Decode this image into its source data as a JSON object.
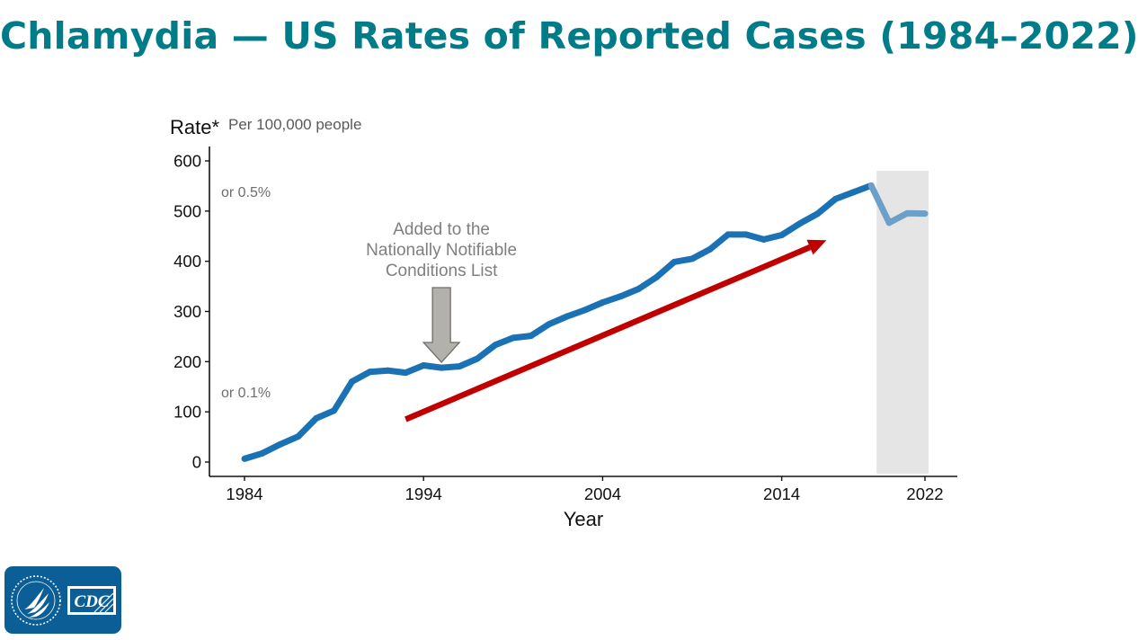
{
  "title": "Chlamydia — US Rates of Reported Cases (1984–2022)",
  "chart_data": {
    "type": "line",
    "xlabel": "Year",
    "ylabel": "Rate*",
    "ylabel_note": "Per 100,000 people",
    "xlim": [
      1984,
      2022
    ],
    "ylim": [
      0,
      600
    ],
    "x_ticks": [
      "1984",
      "1994",
      "2004",
      "2014",
      "2022"
    ],
    "y_ticks": [
      "0",
      "100",
      "200",
      "300",
      "400",
      "500",
      "600"
    ],
    "series": [
      {
        "color": "#1a72b5",
        "points": [
          [
            1984,
            6.5
          ],
          [
            1985,
            17.4
          ],
          [
            1986,
            35.2
          ],
          [
            1987,
            50.8
          ],
          [
            1988,
            87.1
          ],
          [
            1989,
            102.5
          ],
          [
            1990,
            160.2
          ],
          [
            1991,
            179.7
          ],
          [
            1992,
            182.3
          ],
          [
            1993,
            178.0
          ],
          [
            1994,
            192.5
          ],
          [
            1995,
            187.8
          ],
          [
            1996,
            190.6
          ],
          [
            1997,
            206.0
          ],
          [
            1998,
            233.2
          ],
          [
            1999,
            247.4
          ],
          [
            2000,
            251.4
          ],
          [
            2001,
            274.5
          ],
          [
            2002,
            290.0
          ],
          [
            2003,
            302.7
          ],
          [
            2004,
            317.9
          ],
          [
            2005,
            330.1
          ],
          [
            2006,
            344.7
          ],
          [
            2007,
            368.0
          ],
          [
            2008,
            398.6
          ],
          [
            2009,
            405.0
          ],
          [
            2010,
            423.9
          ],
          [
            2011,
            453.4
          ],
          [
            2012,
            453.3
          ],
          [
            2013,
            443.5
          ],
          [
            2014,
            452.2
          ],
          [
            2015,
            475.0
          ],
          [
            2016,
            494.7
          ],
          [
            2017,
            524.0
          ],
          [
            2018,
            537.5
          ],
          [
            2019,
            551.0
          ]
        ]
      },
      {
        "color": "#6da0c9",
        "points": [
          [
            2019,
            551.0
          ],
          [
            2020,
            476.7
          ],
          [
            2021,
            495.5
          ],
          [
            2022,
            495.0
          ]
        ]
      }
    ],
    "annotations": {
      "pct_high": {
        "text": "or 0.5%",
        "y": 500
      },
      "pct_low": {
        "text": "or 0.1%",
        "y": 100
      },
      "notifiable": {
        "lines": [
          "Added to the",
          "Nationally Notifiable",
          "Conditions List"
        ],
        "x": 1995
      },
      "trend_arrow": {
        "from": [
          1993,
          85
        ],
        "to": [
          2016.5,
          442
        ],
        "color": "#c00000"
      },
      "shaded_period": {
        "from": 2019.3,
        "to": 2022.2,
        "color": "#e6e5e6"
      }
    }
  },
  "logo": {
    "text": "CDC"
  }
}
